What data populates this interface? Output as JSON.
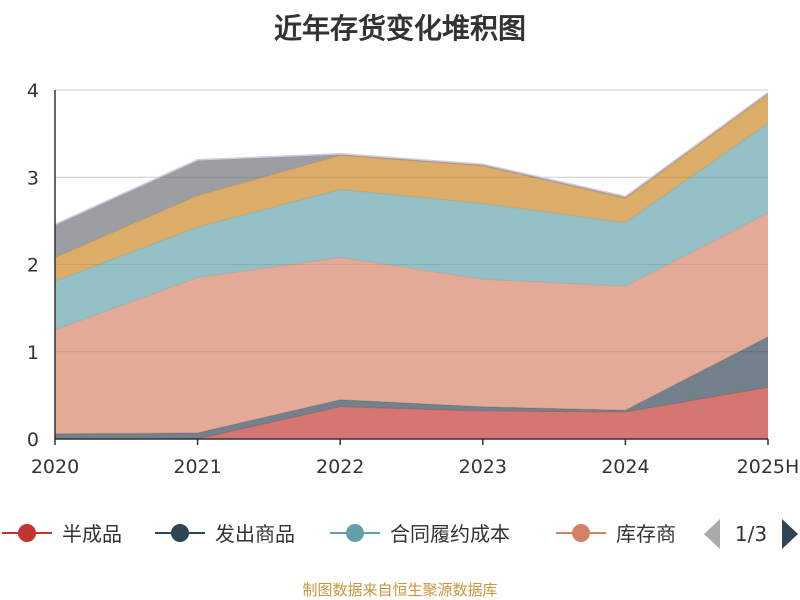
{
  "chart_data": {
    "type": "area",
    "stacked": true,
    "title": "近年存货变化堆积图",
    "x": [
      "2020",
      "2021",
      "2022",
      "2023",
      "2024",
      "2025H"
    ],
    "ylim": [
      0,
      4
    ],
    "yticks": [
      "0",
      "1",
      "2",
      "3",
      "4"
    ],
    "grid": true,
    "legend_position": "bottom",
    "series": [
      {
        "name": "半成品",
        "values": [
          0.0,
          0.0,
          0.37,
          0.32,
          0.31,
          0.59
        ],
        "color": "#c23531"
      },
      {
        "name": "发出商品",
        "values": [
          0.06,
          0.07,
          0.08,
          0.05,
          0.02,
          0.58
        ],
        "color": "#2f4554"
      },
      {
        "name": "",
        "values": [
          1.19,
          1.78,
          1.63,
          1.46,
          1.42,
          1.42
        ],
        "color": "#d48265"
      },
      {
        "name": "合同履约成本",
        "values": [
          0.56,
          0.58,
          0.78,
          0.87,
          0.73,
          1.03
        ],
        "color": "#61a0a8"
      },
      {
        "name": "",
        "values": [
          0.27,
          0.36,
          0.39,
          0.43,
          0.28,
          0.33
        ],
        "color": "#ca8622"
      },
      {
        "name": "",
        "values": [
          0.38,
          0.41,
          0.02,
          0.02,
          0.02,
          0.02
        ],
        "color": "#6e7074"
      }
    ],
    "legend": [
      {
        "label": "半成品",
        "color": "#c23531"
      },
      {
        "label": "发出商品",
        "color": "#2f4554"
      },
      {
        "label": "合同履约成本",
        "color": "#61a0a8"
      },
      {
        "label": "库存商",
        "color": "#d48265"
      }
    ],
    "pager": "1/3",
    "source": "制图数据来自恒生聚源数据库"
  }
}
